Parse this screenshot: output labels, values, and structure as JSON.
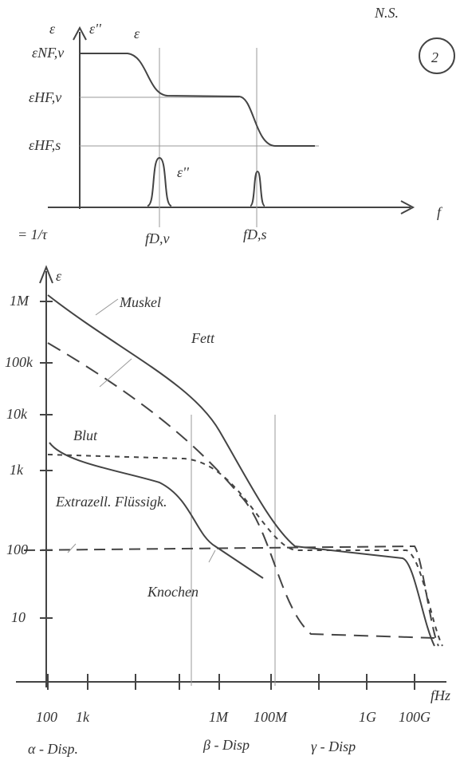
{
  "corner": {
    "text": "N.S.",
    "badge": "2"
  },
  "top_diagram": {
    "y_axis_labels": [
      "ε",
      "ε''"
    ],
    "curve_label": "ε",
    "levels": [
      "εNF,ν",
      "εHF,ν",
      "εHF,s"
    ],
    "peak_label": "ε''",
    "x_axis_label": "f",
    "x_ticks": [
      "= 1/τ",
      "fD,ν",
      "fD,s"
    ]
  },
  "bottom_diagram": {
    "y_axis_label": "ε",
    "y_ticks": [
      "1M",
      "100k",
      "10k",
      "1k",
      "100",
      "10"
    ],
    "curve_labels": [
      "Muskel",
      "Fett",
      "Blut",
      "Extrazell. Flüssigk.",
      "Knochen"
    ],
    "x_ticks": [
      "100",
      "1k",
      "1M",
      "100M",
      "1G",
      "100G"
    ],
    "x_axis_label": "fHz",
    "dispersions": [
      "α - Disp.",
      "β - Disp",
      "γ - Disp"
    ]
  }
}
